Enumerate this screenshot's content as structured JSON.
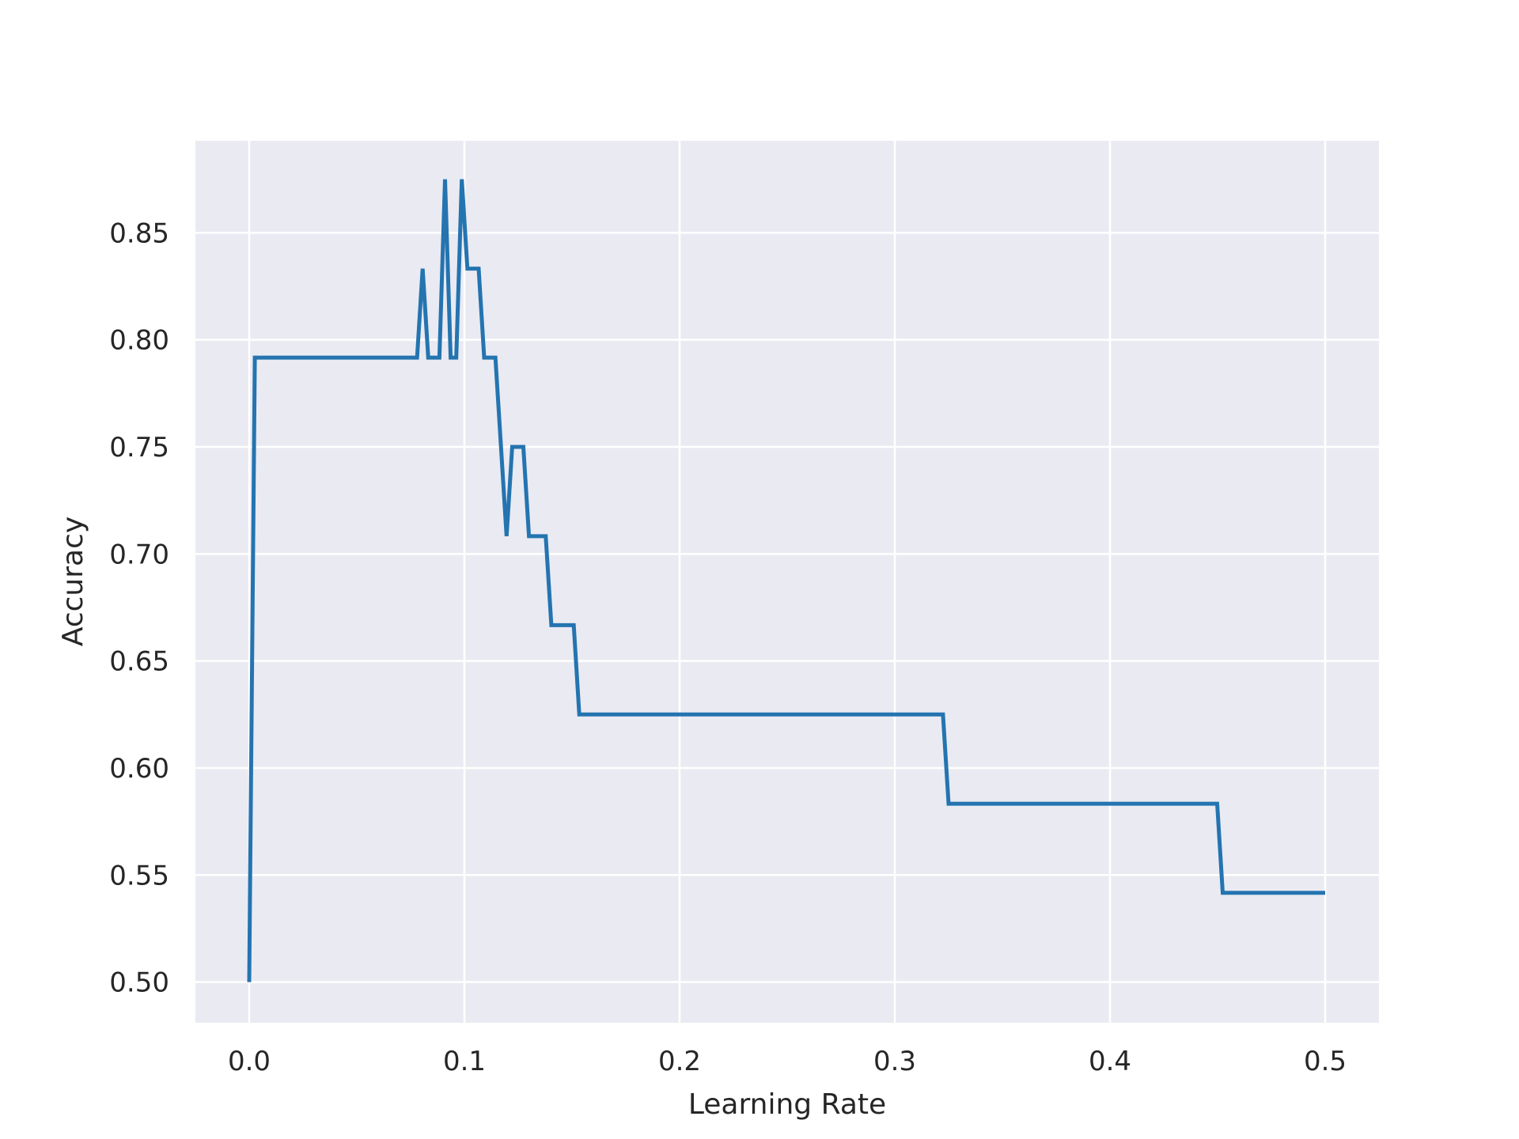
{
  "chart_data": {
    "type": "line",
    "title": "",
    "xlabel": "Learning Rate",
    "ylabel": "Accuracy",
    "xlim": [
      -0.025,
      0.525
    ],
    "ylim": [
      0.481,
      0.893
    ],
    "xticks": [
      0.0,
      0.1,
      0.2,
      0.3,
      0.4,
      0.5
    ],
    "xtick_labels": [
      "0.0",
      "0.1",
      "0.2",
      "0.3",
      "0.4",
      "0.5"
    ],
    "yticks": [
      0.5,
      0.55,
      0.6,
      0.65,
      0.7,
      0.75,
      0.8,
      0.85
    ],
    "ytick_labels": [
      "0.50",
      "0.55",
      "0.60",
      "0.65",
      "0.70",
      "0.75",
      "0.80",
      "0.85"
    ],
    "grid": true,
    "series": [
      {
        "color": "#2474b0",
        "x": [
          0.0,
          0.0026,
          0.078,
          0.0806,
          0.0832,
          0.0884,
          0.091,
          0.0936,
          0.0962,
          0.0988,
          0.1014,
          0.1066,
          0.1092,
          0.1144,
          0.1196,
          0.1222,
          0.1274,
          0.13,
          0.1378,
          0.1404,
          0.1482,
          0.1508,
          0.1534,
          0.3224,
          0.325,
          0.4498,
          0.4524,
          0.5
        ],
        "y": [
          0.5,
          0.7917,
          0.7917,
          0.8333,
          0.7917,
          0.7917,
          0.875,
          0.7917,
          0.7917,
          0.875,
          0.8333,
          0.8333,
          0.7917,
          0.7917,
          0.7083,
          0.75,
          0.75,
          0.7083,
          0.7083,
          0.6667,
          0.6667,
          0.6667,
          0.625,
          0.625,
          0.5833,
          0.5833,
          0.5417,
          0.5417
        ]
      }
    ]
  },
  "colors": {
    "plot_background": "#eaeaf2",
    "grid": "#ffffff",
    "line": "#2474b0",
    "text": "#262626"
  }
}
